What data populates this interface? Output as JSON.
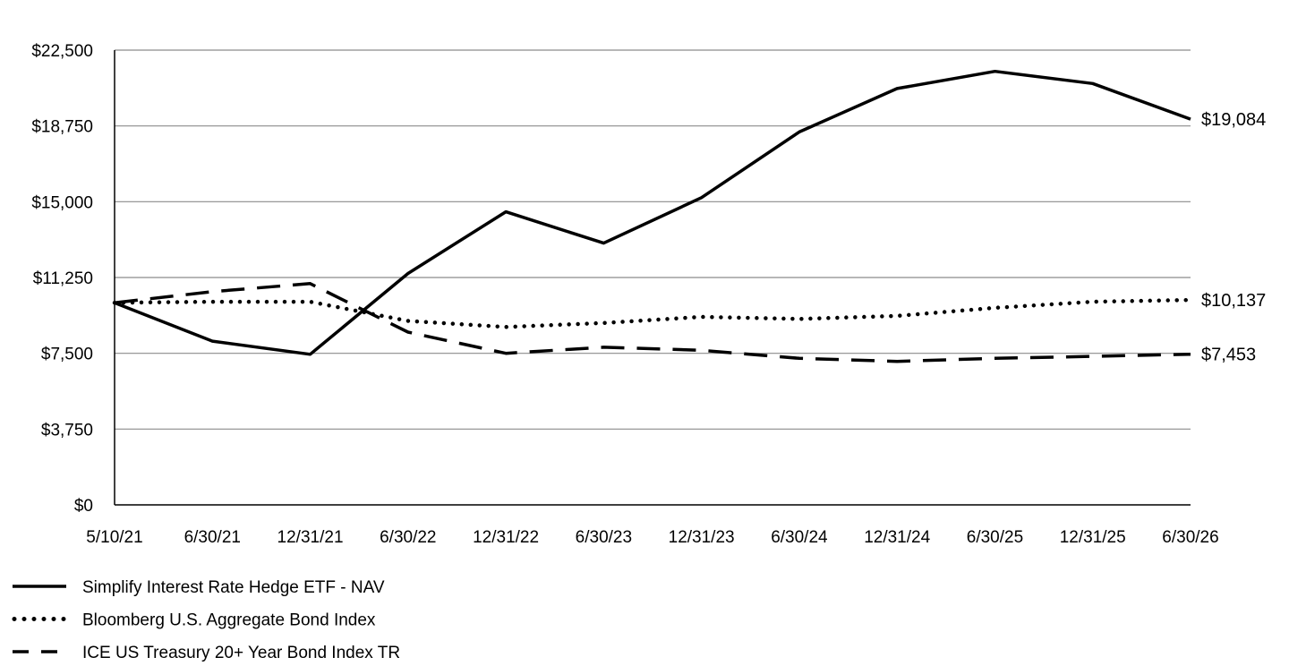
{
  "chart_data": {
    "type": "line",
    "title": "",
    "xlabel": "",
    "ylabel": "",
    "categories": [
      "5/10/21",
      "6/30/21",
      "12/31/21",
      "6/30/22",
      "12/31/22",
      "6/30/23",
      "12/31/23",
      "6/30/24",
      "12/31/24",
      "6/30/25",
      "12/31/25",
      "6/30/26"
    ],
    "y_ticks": [
      "$0",
      "$3,750",
      "$7,500",
      "$11,250",
      "$15,000",
      "$18,750",
      "$22,500"
    ],
    "ylim": [
      0,
      22500
    ],
    "grid": true,
    "legend_position": "bottom-left",
    "series": [
      {
        "name": "Simplify Interest Rate Hedge ETF - NAV",
        "style": "solid",
        "values": [
          10000,
          8100,
          7450,
          11450,
          14500,
          12950,
          15200,
          18450,
          20600,
          21450,
          20850,
          19084
        ],
        "end_label": "$19,084"
      },
      {
        "name": "Bloomberg U.S. Aggregate Bond Index",
        "style": "dotted",
        "values": [
          10000,
          10050,
          10050,
          9100,
          8800,
          9000,
          9300,
          9200,
          9350,
          9750,
          10050,
          10137
        ],
        "end_label": "$10,137"
      },
      {
        "name": "ICE US Treasury 20+ Year Bond Index TR",
        "style": "dashed",
        "values": [
          10000,
          10550,
          10950,
          8550,
          7500,
          7800,
          7650,
          7250,
          7100,
          7250,
          7350,
          7453
        ],
        "end_label": "$7,453"
      }
    ],
    "colors": {
      "line": "#000000",
      "grid": "#8c8c8c"
    }
  }
}
